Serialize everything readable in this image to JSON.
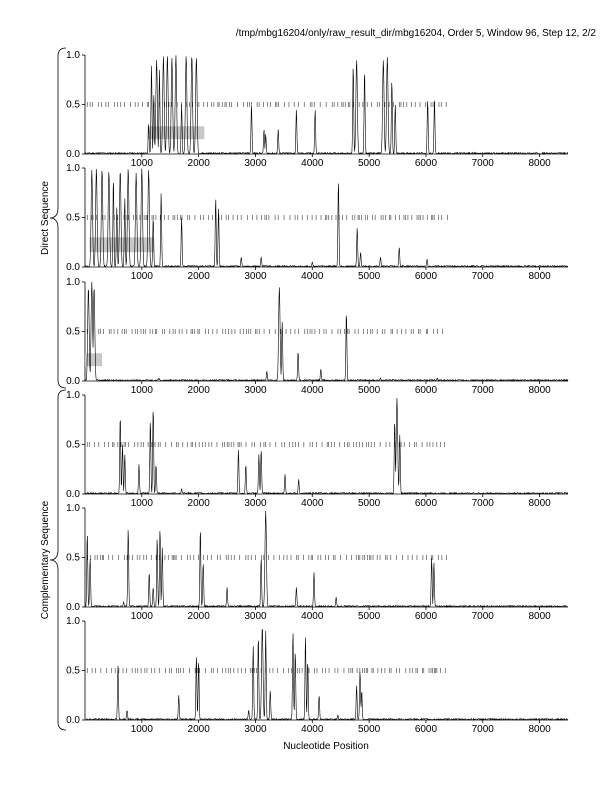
{
  "header": "/tmp/mbg16204/only/raw_result_dir/mbg16204, Order 5, Window 96, Step 12, 2/2",
  "group_labels": {
    "direct": "Direct Sequence",
    "complementary": "Complementary Sequence"
  },
  "chart_data": {
    "type": "line",
    "title": "/tmp/mbg16204/only/raw_result_dir/mbg16204, Order 5, Window 96, Step 12, 2/2",
    "xlabel": "Nucleotide Position",
    "xlim": [
      0,
      8500
    ],
    "ylim": [
      0,
      1
    ],
    "x_ticks": [
      1000,
      2000,
      3000,
      4000,
      5000,
      6000,
      7000,
      8000
    ],
    "x_tick_labels": [
      "1000",
      "2000",
      "3000",
      "4000",
      "5000",
      "6000",
      "7000",
      "8000"
    ],
    "y_ticks": [
      0,
      0.5,
      1
    ],
    "y_tick_labels": [
      "0.0",
      "0.5",
      "1.0"
    ],
    "panels": [
      {
        "name": "direct-frame-1",
        "group": "direct",
        "peaks": [
          [
            1120,
            0.3
          ],
          [
            1170,
            0.9
          ],
          [
            1210,
            0.6
          ],
          [
            1260,
            0.95
          ],
          [
            1310,
            0.85
          ],
          [
            1380,
            0.99
          ],
          [
            1450,
            1.0
          ],
          [
            1530,
            0.97
          ],
          [
            1600,
            1.0
          ],
          [
            1700,
            0.5
          ],
          [
            1780,
            1.0
          ],
          [
            1880,
            1.0
          ],
          [
            1960,
            0.98
          ],
          [
            2930,
            0.5
          ],
          [
            3150,
            0.25
          ],
          [
            3180,
            0.2
          ],
          [
            3400,
            0.25
          ],
          [
            3720,
            0.45
          ],
          [
            4050,
            0.45
          ],
          [
            4720,
            0.9
          ],
          [
            4780,
            0.95
          ],
          [
            4920,
            0.85
          ],
          [
            5250,
            0.95
          ],
          [
            5320,
            0.98
          ],
          [
            5400,
            0.75
          ],
          [
            5460,
            0.5
          ],
          [
            6030,
            0.55
          ],
          [
            6150,
            0.55
          ]
        ],
        "midline_range": [
          0,
          6380
        ],
        "orf_box": [
          1100,
          2100,
          0.15,
          0.28
        ]
      },
      {
        "name": "direct-frame-2",
        "group": "direct",
        "peaks": [
          [
            120,
            0.98
          ],
          [
            200,
            1.0
          ],
          [
            300,
            0.99
          ],
          [
            420,
            0.97
          ],
          [
            500,
            0.9
          ],
          [
            560,
            0.6
          ],
          [
            620,
            0.98
          ],
          [
            700,
            0.7
          ],
          [
            760,
            1.0
          ],
          [
            900,
            0.95
          ],
          [
            1000,
            1.0
          ],
          [
            1120,
            0.98
          ],
          [
            1200,
            0.5
          ],
          [
            1340,
            0.75
          ],
          [
            1700,
            0.5
          ],
          [
            2300,
            0.7
          ],
          [
            2350,
            0.6
          ],
          [
            2750,
            0.1
          ],
          [
            3100,
            0.1
          ],
          [
            4000,
            0.05
          ],
          [
            4460,
            0.88
          ],
          [
            4790,
            0.4
          ],
          [
            4850,
            0.15
          ],
          [
            5200,
            0.1
          ],
          [
            5530,
            0.2
          ],
          [
            6020,
            0.08
          ]
        ],
        "midline_range": [
          0,
          6380
        ],
        "orf_box": [
          80,
          1220,
          0.15,
          0.3
        ]
      },
      {
        "name": "direct-frame-3",
        "group": "direct",
        "peaks": [
          [
            60,
            0.95
          ],
          [
            120,
            1.0
          ],
          [
            160,
            0.95
          ],
          [
            1300,
            0.03
          ],
          [
            3200,
            0.1
          ],
          [
            3420,
            0.95
          ],
          [
            3470,
            0.6
          ],
          [
            3750,
            0.3
          ],
          [
            4150,
            0.12
          ],
          [
            4600,
            0.7
          ],
          [
            5200,
            0.03
          ],
          [
            6200,
            0.03
          ]
        ],
        "midline_range": [
          0,
          6380
        ],
        "orf_box": [
          0,
          300,
          0.15,
          0.28
        ]
      },
      {
        "name": "complementary-frame-1",
        "group": "complementary",
        "peaks": [
          [
            620,
            0.8
          ],
          [
            660,
            0.5
          ],
          [
            700,
            0.4
          ],
          [
            950,
            0.3
          ],
          [
            1150,
            0.75
          ],
          [
            1200,
            0.88
          ],
          [
            1250,
            0.3
          ],
          [
            1700,
            0.05
          ],
          [
            2700,
            0.45
          ],
          [
            2830,
            0.3
          ],
          [
            3060,
            0.4
          ],
          [
            3100,
            0.45
          ],
          [
            3520,
            0.2
          ],
          [
            3760,
            0.15
          ],
          [
            5450,
            0.75
          ],
          [
            5490,
            0.97
          ],
          [
            5540,
            0.6
          ]
        ],
        "midline_range": [
          0,
          6380
        ],
        "orf_box": null
      },
      {
        "name": "complementary-frame-2",
        "group": "complementary",
        "peaks": [
          [
            40,
            0.75
          ],
          [
            90,
            0.5
          ],
          [
            680,
            0.05
          ],
          [
            760,
            0.8
          ],
          [
            1130,
            0.35
          ],
          [
            1200,
            0.2
          ],
          [
            1270,
            0.7
          ],
          [
            1320,
            0.8
          ],
          [
            1360,
            0.6
          ],
          [
            2030,
            0.8
          ],
          [
            2080,
            0.45
          ],
          [
            2500,
            0.2
          ],
          [
            3100,
            0.5
          ],
          [
            3180,
            0.97
          ],
          [
            3720,
            0.2
          ],
          [
            4030,
            0.35
          ],
          [
            4420,
            0.1
          ],
          [
            6100,
            0.5
          ],
          [
            6140,
            0.45
          ]
        ],
        "midline_range": [
          0,
          6380
        ],
        "orf_box": null
      },
      {
        "name": "complementary-frame-3",
        "group": "complementary",
        "peaks": [
          [
            580,
            0.55
          ],
          [
            740,
            0.1
          ],
          [
            1650,
            0.25
          ],
          [
            1960,
            0.65
          ],
          [
            2000,
            0.6
          ],
          [
            2880,
            0.1
          ],
          [
            2960,
            0.75
          ],
          [
            3050,
            0.85
          ],
          [
            3120,
            0.95
          ],
          [
            3180,
            0.9
          ],
          [
            3260,
            0.3
          ],
          [
            3660,
            0.9
          ],
          [
            3700,
            0.7
          ],
          [
            3880,
            0.85
          ],
          [
            3920,
            0.6
          ],
          [
            4120,
            0.25
          ],
          [
            4450,
            0.05
          ],
          [
            4780,
            0.35
          ],
          [
            4840,
            0.5
          ],
          [
            4870,
            0.3
          ]
        ],
        "midline_range": [
          0,
          6380
        ],
        "orf_box": null
      }
    ]
  }
}
